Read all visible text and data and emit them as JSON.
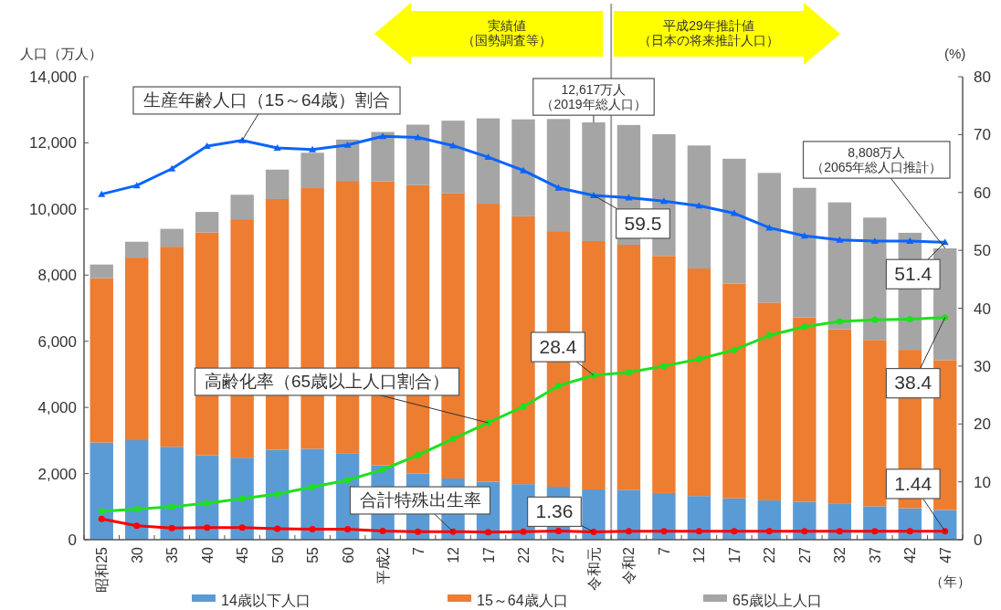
{
  "chart_data": {
    "type": "bar",
    "stacked": true,
    "legend": "bottom",
    "categories": [
      "昭和25",
      "30",
      "35",
      "40",
      "45",
      "50",
      "55",
      "60",
      "平成2",
      "7",
      "12",
      "17",
      "22",
      "27",
      "令和元",
      "令和2",
      "7",
      "12",
      "17",
      "22",
      "27",
      "32",
      "37",
      "42",
      "47"
    ],
    "series": [
      {
        "name": "14歳以下人口",
        "color": "#5b9bd5",
        "values": [
          2940,
          3010,
          2810,
          2550,
          2480,
          2720,
          2750,
          2600,
          2250,
          2000,
          1850,
          1750,
          1680,
          1600,
          1520,
          1510,
          1410,
          1320,
          1250,
          1190,
          1140,
          1080,
          1010,
          950,
          900
        ]
      },
      {
        "name": "15～64歳人口",
        "color": "#ed7d31",
        "values": [
          4970,
          5520,
          6050,
          6740,
          7210,
          7580,
          7880,
          8250,
          8590,
          8720,
          8620,
          8410,
          8100,
          7730,
          7510,
          7410,
          7170,
          6880,
          6490,
          5980,
          5580,
          5280,
          5030,
          4790,
          4530
        ]
      },
      {
        "name": "65歳以上人口",
        "color": "#a5a5a5",
        "values": [
          410,
          480,
          540,
          620,
          740,
          890,
          1070,
          1250,
          1490,
          1830,
          2200,
          2580,
          2930,
          3390,
          3590,
          3620,
          3680,
          3720,
          3780,
          3920,
          3920,
          3840,
          3700,
          3540,
          3380
        ]
      },
      {
        "name": "生産年齢人口（15～64歳）割合",
        "type": "line",
        "axis": "y2",
        "marker": "triangle",
        "color": "#0a64ff",
        "values": [
          59.7,
          61.2,
          64.1,
          68.0,
          69.0,
          67.7,
          67.4,
          68.2,
          69.7,
          69.5,
          68.1,
          66.1,
          63.8,
          60.8,
          59.5,
          59.1,
          58.5,
          57.7,
          56.4,
          53.9,
          52.5,
          51.8,
          51.6,
          51.6,
          51.4
        ],
        "value_labels": [
          null,
          null,
          null,
          null,
          null,
          null,
          null,
          null,
          null,
          null,
          null,
          null,
          null,
          null,
          "59.5",
          null,
          null,
          null,
          null,
          null,
          null,
          null,
          null,
          null,
          "51.4"
        ]
      },
      {
        "name": "高齢化率（65歳以上人口割合）",
        "type": "line",
        "axis": "y2",
        "marker": "circle",
        "color": "#1ee01e",
        "values": [
          4.9,
          5.3,
          5.7,
          6.3,
          7.1,
          7.9,
          9.1,
          10.3,
          12.1,
          14.6,
          17.4,
          20.2,
          23.0,
          26.6,
          28.4,
          28.9,
          30.0,
          31.2,
          32.8,
          35.3,
          36.8,
          37.7,
          38.0,
          38.1,
          38.4
        ],
        "value_labels": [
          null,
          null,
          null,
          null,
          null,
          null,
          null,
          null,
          null,
          null,
          null,
          null,
          null,
          null,
          "28.4",
          null,
          null,
          null,
          null,
          null,
          null,
          null,
          null,
          null,
          "38.4"
        ]
      },
      {
        "name": "合計特殊出生率",
        "type": "line",
        "axis": "y2",
        "marker": "circle",
        "color": "#ff0000",
        "values": [
          3.6,
          2.4,
          2.0,
          2.1,
          2.1,
          1.9,
          1.8,
          1.8,
          1.5,
          1.4,
          1.4,
          1.3,
          1.4,
          1.5,
          1.36,
          1.44,
          1.44,
          1.44,
          1.44,
          1.44,
          1.44,
          1.44,
          1.44,
          1.44,
          1.44
        ],
        "value_labels": [
          null,
          null,
          null,
          null,
          null,
          null,
          null,
          null,
          null,
          null,
          null,
          null,
          null,
          null,
          "1.36",
          null,
          null,
          null,
          null,
          null,
          null,
          null,
          null,
          null,
          "1.44"
        ]
      }
    ],
    "ylabel": "人口（万人）",
    "y2label": "(%)",
    "xlabel": "（年）",
    "ylim": [
      0,
      14000
    ],
    "yticks": [
      0,
      {
        "value": 2000,
        "label": "2,000"
      },
      {
        "value": 4000,
        "label": "4,000"
      },
      {
        "value": 6000,
        "label": "6,000"
      },
      {
        "value": 8000,
        "label": "8,000"
      },
      {
        "value": 10000,
        "label": "10,000"
      },
      {
        "value": 12000,
        "label": "12,000"
      },
      {
        "value": 14000,
        "label": "14,000"
      }
    ],
    "y2lim": [
      0,
      80
    ],
    "y2ticks": [
      0,
      10,
      20,
      30,
      40,
      50,
      60,
      70,
      80
    ],
    "annotations": [
      "実績値（国勢調査等）",
      "平成29年推計値（日本の将来推計人口）",
      {
        "text": "12,617万人（2019年総人口）",
        "x": "令和元",
        "y": 12617
      },
      {
        "text": "8,808万人（2065年総人口推計）",
        "x": "47",
        "y": 8808
      }
    ]
  }
}
